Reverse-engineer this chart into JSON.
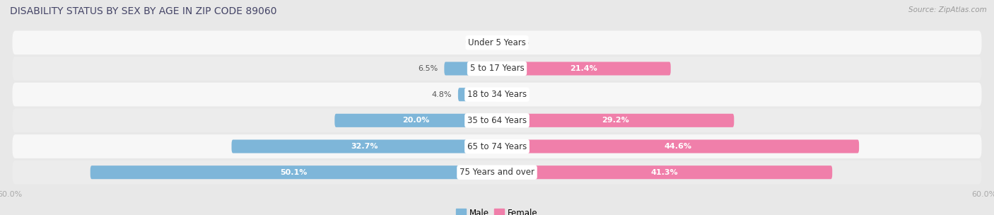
{
  "title": "DISABILITY STATUS BY SEX BY AGE IN ZIP CODE 89060",
  "source": "Source: ZipAtlas.com",
  "categories": [
    "Under 5 Years",
    "5 to 17 Years",
    "18 to 34 Years",
    "35 to 64 Years",
    "65 to 74 Years",
    "75 Years and over"
  ],
  "male_values": [
    0.0,
    6.5,
    4.8,
    20.0,
    32.7,
    50.1
  ],
  "female_values": [
    0.0,
    21.4,
    0.0,
    29.2,
    44.6,
    41.3
  ],
  "male_color": "#7eb6d9",
  "female_color": "#f07faa",
  "male_label": "Male",
  "female_label": "Female",
  "xlim": 60.0,
  "bar_height": 0.52,
  "bg_color": "#e8e8e8",
  "row_color_even": "#f7f7f7",
  "row_color_odd": "#ececec",
  "title_color": "#444466",
  "source_color": "#999999",
  "tick_color": "#aaaaaa",
  "title_fontsize": 10.0,
  "source_fontsize": 7.5,
  "cat_fontsize": 8.5,
  "val_fontsize": 8.0,
  "tick_fontsize": 8.0,
  "legend_fontsize": 8.5
}
